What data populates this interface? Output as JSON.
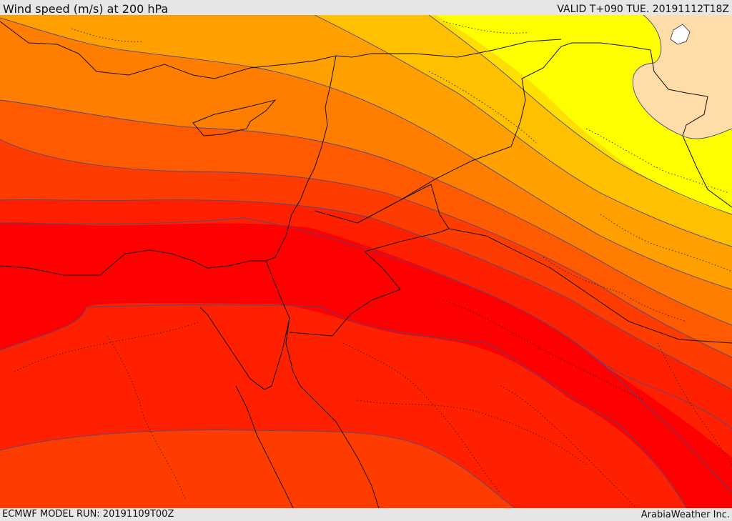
{
  "header": {
    "title": "Wind speed (m/s) at 200 hPa",
    "valid": "VALID T+090 TUE. 20191112T18Z"
  },
  "footer": {
    "model_run": "ECMWF MODEL RUN: 20191109T00Z",
    "credit": "ArabiaWeather Inc."
  },
  "colors": {
    "pale": "#ffdca8",
    "yellow": "#ffff00",
    "yellow_orange": "#ffdf00",
    "light_orange": "#ffc000",
    "orange": "#ffa000",
    "dark_orange": "#ff7e00",
    "orange_red": "#ff5a00",
    "red_orange": "#ff3c00",
    "red": "#ff2000",
    "bright_red": "#ff0000",
    "contour": "#4a4a8a",
    "border": "#111111"
  }
}
